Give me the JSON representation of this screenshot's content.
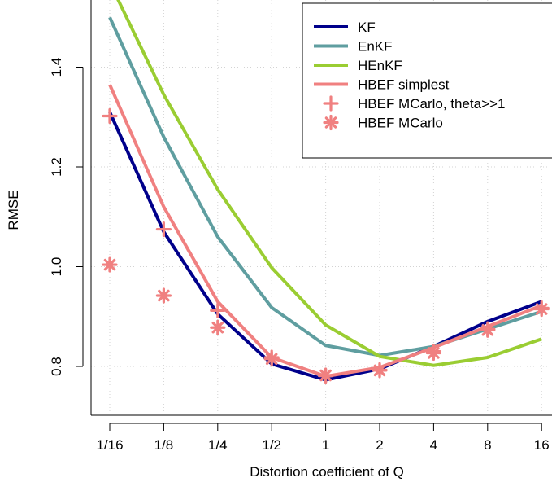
{
  "chart_data": {
    "type": "line",
    "title": "",
    "xlabel": "Distortion coefficient of Q",
    "ylabel": "RMSE",
    "categories": [
      "1/16",
      "1/8",
      "1/4",
      "1/2",
      "1",
      "2",
      "4",
      "8",
      "16"
    ],
    "y_ticks": [
      "0.8",
      "1.0",
      "1.2",
      "1.4"
    ],
    "y_tick_values": [
      0.8,
      1.0,
      1.2,
      1.4
    ],
    "ylim": [
      0.72,
      1.54
    ],
    "grid": true,
    "legend_position": "top-right",
    "series": [
      {
        "name": "KF",
        "style": "line",
        "color": "#00008B",
        "values": [
          1.31,
          1.07,
          0.905,
          0.805,
          0.773,
          0.795,
          0.84,
          0.89,
          0.93
        ]
      },
      {
        "name": "EnKF",
        "style": "line",
        "color": "#5F9EA0",
        "values": [
          1.5,
          1.26,
          1.06,
          0.918,
          0.842,
          0.822,
          0.84,
          0.875,
          0.91
        ]
      },
      {
        "name": "HEnKF",
        "style": "line",
        "color": "#9ACD32",
        "values": [
          1.57,
          1.345,
          1.155,
          0.998,
          0.883,
          0.82,
          0.802,
          0.818,
          0.855
        ]
      },
      {
        "name": "HBEF simplest",
        "style": "line",
        "color": "#F08080",
        "values": [
          1.365,
          1.12,
          0.93,
          0.818,
          0.78,
          0.798,
          0.838,
          0.88,
          0.922
        ]
      },
      {
        "name": "HBEF MCarlo, theta>>1",
        "style": "plus",
        "color": "#F08080",
        "values": [
          1.302,
          1.075,
          0.912,
          0.818,
          0.781,
          0.793,
          0.83,
          0.875,
          0.917
        ]
      },
      {
        "name": "HBEF MCarlo",
        "style": "asterisk",
        "color": "#F08080",
        "values": [
          1.004,
          0.942,
          0.878,
          0.815,
          0.782,
          0.792,
          0.827,
          0.873,
          0.915
        ]
      }
    ]
  }
}
